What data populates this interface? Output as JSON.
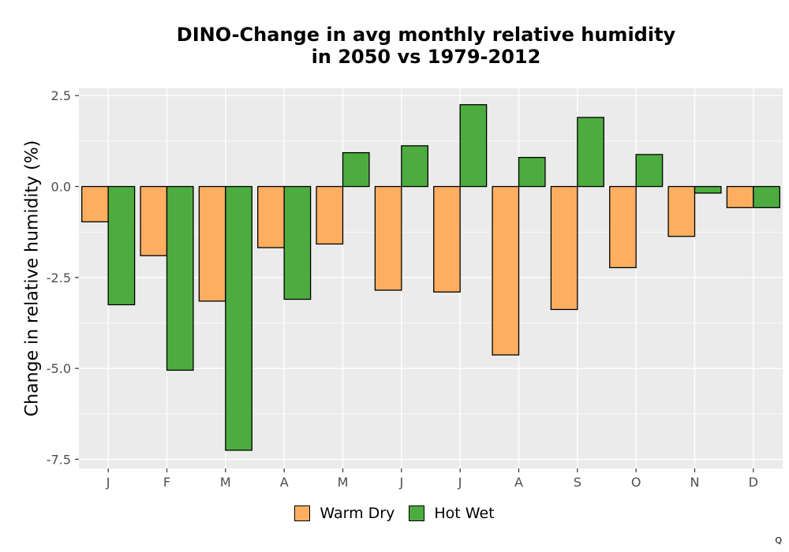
{
  "chart_data": {
    "type": "bar",
    "title": [
      "DINO-Change in avg monthly relative humidity",
      "in 2050 vs 1979-2012"
    ],
    "xlabel": "",
    "ylabel": "Change in relative humidity (%)",
    "categories": [
      "J",
      "F",
      "M",
      "A",
      "M",
      "J",
      "J",
      "A",
      "S",
      "O",
      "N",
      "D"
    ],
    "series": [
      {
        "name": "Warm Dry",
        "color": "#fdae61",
        "values": [
          -0.97,
          -1.9,
          -3.15,
          -1.68,
          -1.58,
          -2.85,
          -2.9,
          -4.63,
          -3.38,
          -2.23,
          -1.37,
          -0.58
        ]
      },
      {
        "name": "Hot Wet",
        "color": "#4dac3f",
        "values": [
          -3.25,
          -5.05,
          -7.25,
          -3.1,
          0.93,
          1.12,
          2.25,
          0.8,
          1.9,
          0.88,
          -0.18,
          -0.58
        ]
      }
    ],
    "ylim": [
      -7.75,
      2.7
    ],
    "yticks": [
      2.5,
      0.0,
      -2.5,
      -5.0,
      -7.5
    ],
    "ytick_labels": [
      "2.5",
      "0.0",
      "-2.5",
      "-5.0",
      "-7.5"
    ],
    "grid": true,
    "legend_position": "bottom"
  },
  "caption_mark": "Q"
}
